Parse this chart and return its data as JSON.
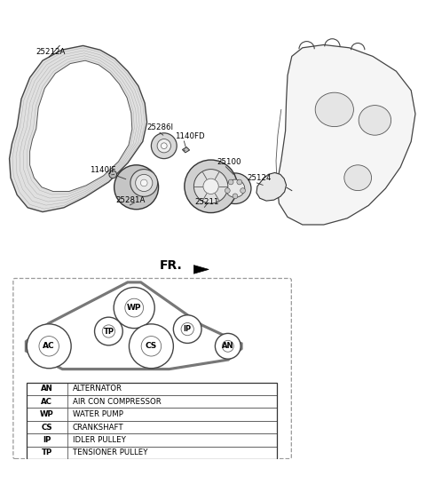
{
  "background_color": "#ffffff",
  "legend_table": [
    [
      "AN",
      "ALTERNATOR"
    ],
    [
      "AC",
      "AIR CON COMPRESSOR"
    ],
    [
      "WP",
      "WATER PUMP"
    ],
    [
      "CS",
      "CRANKSHAFT"
    ],
    [
      "IP",
      "IDLER PULLEY"
    ],
    [
      "TP",
      "TENSIONER PULLEY"
    ]
  ],
  "pulleys_schematic": {
    "WP": [
      0.315,
      0.355,
      0.048
    ],
    "IP": [
      0.44,
      0.305,
      0.033
    ],
    "TP": [
      0.255,
      0.3,
      0.033
    ],
    "CS": [
      0.355,
      0.265,
      0.052
    ],
    "AC": [
      0.115,
      0.265,
      0.052
    ],
    "AN": [
      0.535,
      0.265,
      0.03
    ]
  }
}
